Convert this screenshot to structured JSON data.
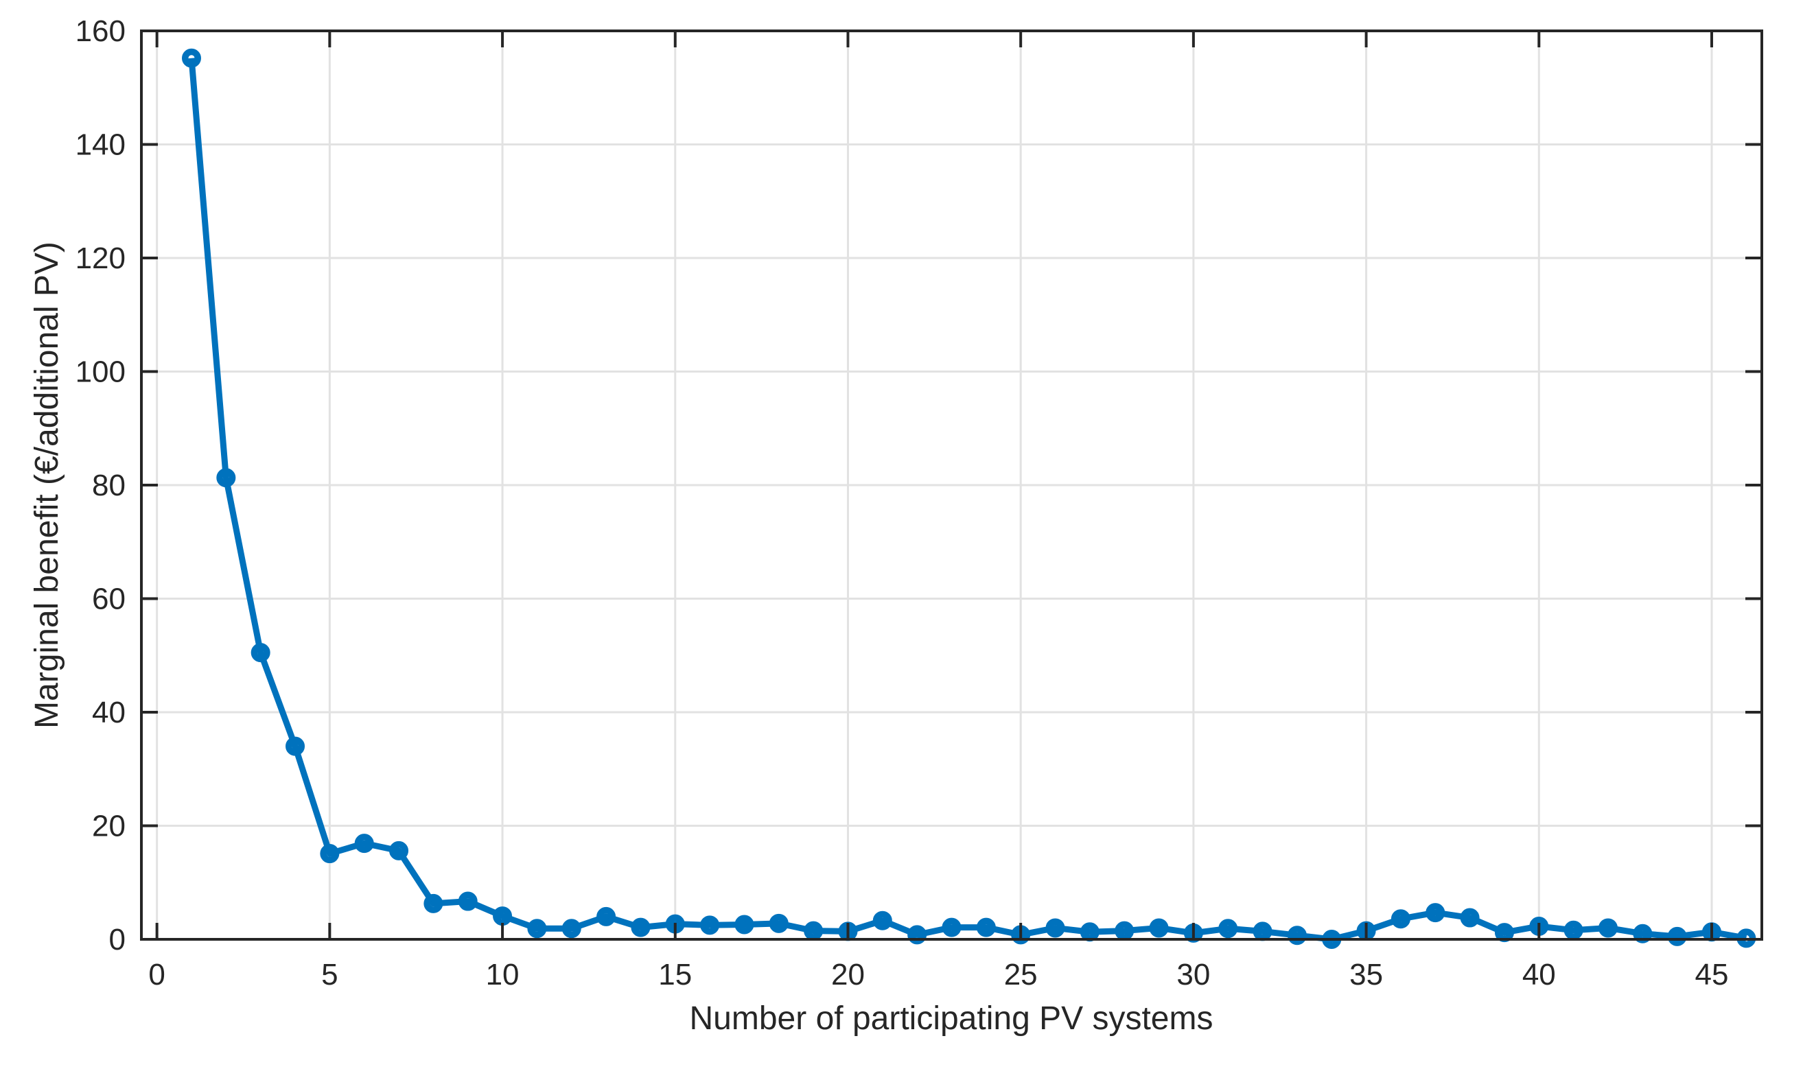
{
  "figure": {
    "background_color": "#ffffff"
  },
  "chart_data": {
    "type": "line",
    "title": "",
    "xlabel": "Number of participating PV systems",
    "ylabel": "Marginal benefit (€/additional PV)",
    "x": [
      1,
      2,
      3,
      4,
      5,
      6,
      7,
      8,
      9,
      10,
      11,
      12,
      13,
      14,
      15,
      16,
      17,
      18,
      19,
      20,
      21,
      22,
      23,
      24,
      25,
      26,
      27,
      28,
      29,
      30,
      31,
      32,
      33,
      34,
      35,
      36,
      37,
      38,
      39,
      40,
      41,
      42,
      43,
      44,
      45,
      46
    ],
    "y": [
      155.2,
      81.3,
      50.5,
      34.0,
      15.1,
      16.9,
      15.6,
      6.3,
      6.7,
      4.1,
      1.9,
      1.9,
      4.0,
      2.1,
      2.7,
      2.5,
      2.6,
      2.8,
      1.5,
      1.4,
      3.3,
      0.8,
      2.1,
      2.1,
      0.8,
      2.0,
      1.3,
      1.5,
      2.0,
      1.1,
      1.9,
      1.4,
      0.7,
      0.0,
      1.5,
      3.6,
      4.7,
      3.8,
      1.2,
      2.3,
      1.6,
      2.0,
      1.0,
      0.5,
      1.3,
      0.2
    ],
    "xlim": [
      -0.45,
      46.45
    ],
    "ylim": [
      0,
      160
    ],
    "xticks": [
      0,
      5,
      10,
      15,
      20,
      25,
      30,
      35,
      40,
      45
    ],
    "yticks": [
      0,
      20,
      40,
      60,
      80,
      100,
      120,
      140,
      160
    ],
    "xtick_labels": [
      "0",
      "5",
      "10",
      "15",
      "20",
      "25",
      "30",
      "35",
      "40",
      "45"
    ],
    "ytick_labels": [
      "0",
      "20",
      "40",
      "60",
      "80",
      "100",
      "120",
      "140",
      "160"
    ],
    "grid": true,
    "legend_position": "none",
    "marker": "o",
    "line_color": "#0072bd",
    "grid_color": "#e2e2e2",
    "axis_color": "#262626",
    "tick_label_color": "#262626"
  }
}
